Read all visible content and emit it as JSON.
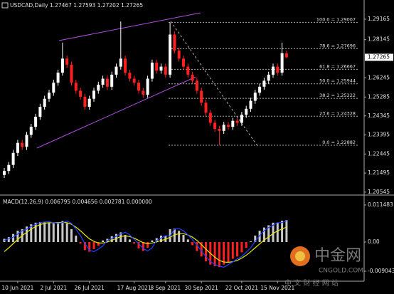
{
  "chart_data": [
    {
      "type": "candlestick",
      "title": "USDCAD,Daily  1.27467 1.27593 1.27202 1.27265",
      "categories": [
        null,
        null,
        null,
        "10 Jun 2021",
        null,
        null,
        null,
        null,
        null,
        null,
        null,
        "2 Jul 2021",
        null,
        null,
        null,
        null,
        null,
        null,
        null,
        "26 Jul 2021",
        null,
        null,
        null,
        null,
        null,
        null,
        null,
        null,
        null,
        "17 Aug 2021",
        null,
        null,
        null,
        null,
        null,
        null,
        "8 Sep 2021",
        null,
        null,
        null,
        null,
        null,
        null,
        null,
        "30 Sep 2021",
        null,
        null,
        null,
        null,
        null,
        null,
        null,
        null,
        "22 Oct 2021",
        null,
        null,
        null,
        null,
        null,
        null,
        null,
        "15 Nov 2021",
        null,
        null
      ],
      "open": [
        1.214,
        1.216,
        1.219,
        1.225,
        1.23,
        1.228,
        1.234,
        1.238,
        1.243,
        1.248,
        1.252,
        1.255,
        1.26,
        1.265,
        1.272,
        1.269,
        1.26,
        1.256,
        1.253,
        1.248,
        1.252,
        1.256,
        1.259,
        1.262,
        1.258,
        1.264,
        1.268,
        1.272,
        1.265,
        1.262,
        1.26,
        1.256,
        1.254,
        1.262,
        1.27,
        1.266,
        1.268,
        1.264,
        1.284,
        1.276,
        1.272,
        1.268,
        1.264,
        1.261,
        1.256,
        1.25,
        1.245,
        1.24,
        1.237,
        1.236,
        1.239,
        1.238,
        1.241,
        1.24,
        1.244,
        1.247,
        1.251,
        1.255,
        1.258,
        1.261,
        1.264,
        1.268,
        1.265,
        1.27467
      ],
      "high": [
        1.2175,
        1.2205,
        1.2265,
        1.2315,
        1.2315,
        1.2355,
        1.2395,
        1.2445,
        1.2495,
        1.2535,
        1.2565,
        1.2615,
        1.2665,
        1.28,
        1.2735,
        1.2705,
        1.2615,
        1.2575,
        1.2545,
        1.2535,
        1.2575,
        1.2605,
        1.2635,
        1.2635,
        1.2655,
        1.2695,
        1.2905,
        1.2735,
        1.2665,
        1.2635,
        1.2615,
        1.2575,
        1.2635,
        1.2715,
        1.2715,
        1.2695,
        1.2695,
        1.2901,
        1.2855,
        1.2775,
        1.2735,
        1.2695,
        1.2655,
        1.2625,
        1.2575,
        1.2515,
        1.2465,
        1.2415,
        1.2385,
        1.2405,
        1.2405,
        1.2425,
        1.2425,
        1.2455,
        1.2485,
        1.2525,
        1.2565,
        1.2595,
        1.2625,
        1.2655,
        1.2695,
        1.2695,
        1.28,
        1.27593
      ],
      "low": [
        1.2125,
        1.2145,
        1.2175,
        1.2235,
        1.2265,
        1.2265,
        1.2325,
        1.2365,
        1.2415,
        1.2465,
        1.2505,
        1.2535,
        1.2585,
        1.2635,
        1.2675,
        1.2585,
        1.2545,
        1.2515,
        1.2465,
        1.2465,
        1.2505,
        1.2545,
        1.2575,
        1.2565,
        1.2565,
        1.2625,
        1.2665,
        1.2635,
        1.2605,
        1.2585,
        1.2545,
        1.2525,
        1.2525,
        1.2605,
        1.2645,
        1.2645,
        1.2625,
        1.2625,
        1.2745,
        1.2705,
        1.2665,
        1.2625,
        1.2595,
        1.2545,
        1.2485,
        1.2435,
        1.2385,
        1.2355,
        1.2288,
        1.2345,
        1.2365,
        1.2365,
        1.2385,
        1.2385,
        1.2425,
        1.2455,
        1.2495,
        1.2535,
        1.2565,
        1.2595,
        1.2625,
        1.2635,
        1.2635,
        1.27202
      ],
      "close": [
        1.216,
        1.219,
        1.225,
        1.23,
        1.228,
        1.234,
        1.238,
        1.243,
        1.248,
        1.252,
        1.255,
        1.26,
        1.265,
        1.272,
        1.269,
        1.26,
        1.256,
        1.253,
        1.248,
        1.252,
        1.256,
        1.259,
        1.262,
        1.258,
        1.264,
        1.268,
        1.272,
        1.265,
        1.262,
        1.26,
        1.256,
        1.254,
        1.262,
        1.27,
        1.266,
        1.268,
        1.264,
        1.284,
        1.276,
        1.272,
        1.268,
        1.264,
        1.261,
        1.256,
        1.25,
        1.245,
        1.24,
        1.237,
        1.236,
        1.239,
        1.238,
        1.241,
        1.24,
        1.244,
        1.247,
        1.251,
        1.255,
        1.258,
        1.261,
        1.264,
        1.268,
        1.265,
        1.2747,
        1.27265
      ],
      "color_up": "#ffffff",
      "color_down": "#ff2020",
      "ylim": [
        1.2047,
        1.2998
      ],
      "yticks": [
        1.29165,
        1.28145,
        1.26245,
        1.25285,
        1.24345,
        1.23395,
        1.22445,
        1.21495,
        1.20545
      ],
      "current_price": 1.27265,
      "fibonacci": [
        {
          "value": 1.29007,
          "label": "100.0 = 1.29007"
        },
        {
          "value": 1.27696,
          "label": "78.6 = 1.27696"
        },
        {
          "value": 1.26667,
          "label": "61.8 = 1.26667"
        },
        {
          "value": 1.25944,
          "label": "50.0 = 1.25944"
        },
        {
          "value": 1.25222,
          "label": "38.2 = 1.25222"
        },
        {
          "value": 1.24328,
          "label": "23.6 = 1.24328"
        },
        {
          "value": 1.22882,
          "label": "0.0 = 1.22882"
        }
      ]
    },
    {
      "type": "macd",
      "title": "MACD(12,26,9) 0.006795 0.004656 0.002781 0.000000",
      "ylim": [
        -0.0117,
        0.0139
      ],
      "yticks": [
        0.011483,
        {
          "value": 0,
          "label": "0.00"
        },
        -0.009043
      ],
      "series": [
        {
          "name": "MACD",
          "color": "#c8c8c8",
          "color_down": "#ff2020",
          "values": [
            0.001,
            0.0015,
            0.0025,
            0.0035,
            0.004,
            0.0048,
            0.0055,
            0.006,
            0.0062,
            0.0063,
            0.006,
            0.0058,
            0.006,
            0.0065,
            0.0058,
            0.004,
            0.002,
            -0.0005,
            -0.0025,
            -0.003,
            -0.0022,
            -0.0012,
            0.0005,
            0.001,
            0.0018,
            0.0025,
            0.003,
            0.0022,
            0.0008,
            -0.0005,
            -0.002,
            -0.0028,
            -0.0018,
            0.0005,
            0.0012,
            0.002,
            0.0018,
            0.004,
            0.0042,
            0.0035,
            0.0022,
            0.0008,
            -0.001,
            -0.0028,
            -0.0045,
            -0.006,
            -0.007,
            -0.0075,
            -0.0078,
            -0.007,
            -0.0062,
            -0.0052,
            -0.0045,
            -0.0032,
            -0.0018,
            0.0002,
            0.002,
            0.0035,
            0.0045,
            0.0052,
            0.006,
            0.006,
            0.0066,
            0.006795
          ]
        },
        {
          "name": "Signal",
          "color": "#e8e800",
          "values": [
            -0.003,
            -0.0018,
            -0.0005,
            0.0008,
            0.002,
            0.003,
            0.004,
            0.0048,
            0.0054,
            0.0058,
            0.006,
            0.006,
            0.006,
            0.0061,
            0.006,
            0.0055,
            0.0046,
            0.0035,
            0.0022,
            0.001,
            0.0002,
            -0.0003,
            -0.0003,
            0.0,
            0.0005,
            0.0011,
            0.0017,
            0.0019,
            0.0017,
            0.0012,
            0.0005,
            -0.0002,
            -0.0005,
            -0.0003,
            0.0,
            0.0005,
            0.0008,
            0.0015,
            0.0022,
            0.0026,
            0.0026,
            0.0022,
            0.0015,
            0.0005,
            -0.0008,
            -0.0022,
            -0.0035,
            -0.0047,
            -0.0057,
            -0.0062,
            -0.0063,
            -0.0061,
            -0.0057,
            -0.005,
            -0.0041,
            -0.003,
            -0.0018,
            -0.0006,
            0.0006,
            0.0016,
            0.0026,
            0.0035,
            0.004,
            0.004656
          ]
        },
        {
          "name": "Line",
          "color": "#2040ff",
          "values": [
            0.0005,
            0.001,
            0.0015,
            0.0025,
            0.0035,
            0.004,
            0.0048,
            0.0055,
            0.006,
            0.0062,
            0.0063,
            0.006,
            0.0058,
            0.006,
            0.0065,
            0.0058,
            0.004,
            0.002,
            -0.0005,
            -0.0025,
            -0.003,
            -0.0022,
            -0.0012,
            0.0005,
            0.001,
            0.0018,
            0.0025,
            0.003,
            0.0022,
            0.0008,
            -0.0005,
            -0.002,
            -0.0028,
            -0.0018,
            0.0005,
            0.0012,
            0.002,
            0.0018,
            0.004,
            0.0042,
            0.0035,
            0.0022,
            0.0008,
            -0.001,
            -0.0028,
            -0.0045,
            -0.006,
            -0.007,
            -0.0075,
            -0.0078,
            -0.007,
            -0.0062,
            -0.0052,
            -0.0045,
            -0.0032,
            -0.0018,
            0.0002,
            0.002,
            0.0035,
            0.0045,
            0.0052,
            0.006,
            0.006,
            0.0066
          ]
        }
      ]
    }
  ],
  "watermark": {
    "name": "中金网",
    "site": "CNGOLD.COM",
    "tagline": "中 文 财 经 网 站"
  }
}
